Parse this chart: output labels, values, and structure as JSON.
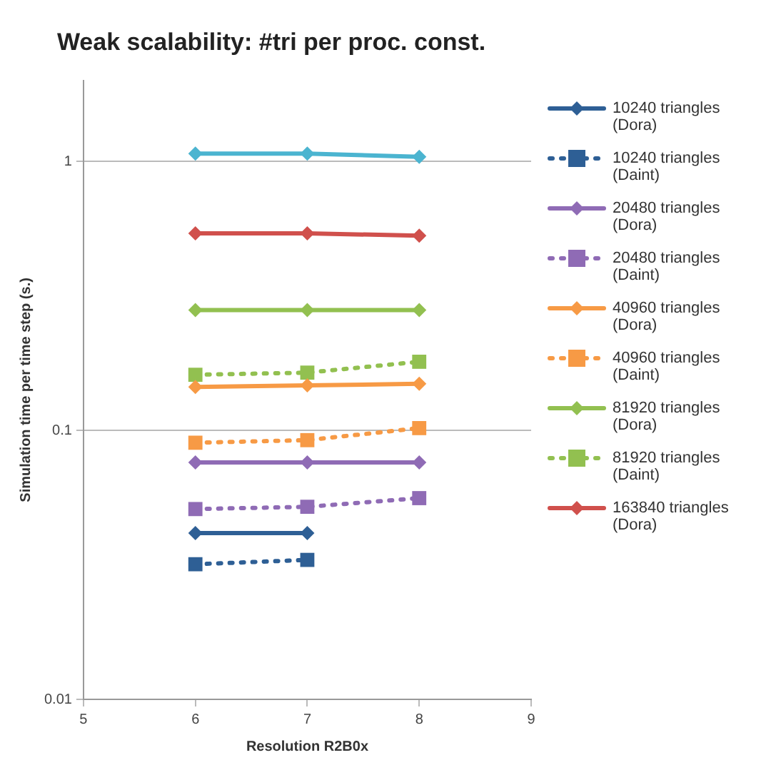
{
  "chart_data": {
    "type": "line",
    "title": "Weak scalability: #tri per proc. const.",
    "xlabel": "Resolution R2B0x",
    "ylabel": "Simulation time per time step (s.)",
    "log": "y",
    "grid": "y",
    "legend": "right",
    "xlim": [
      5,
      9
    ],
    "xticks": [
      5,
      6,
      7,
      8,
      9
    ],
    "ylim": [
      0.01,
      2
    ],
    "yticks": [
      0.01,
      0.1,
      1
    ],
    "series": [
      {
        "name": "10240 triangles (Dora)",
        "color": "#2e5f95",
        "x": [
          6,
          7
        ],
        "values": [
          0.0415,
          0.0415
        ],
        "marker": "diamond",
        "line_style": "solid"
      },
      {
        "name": "10240 triangles (Daint)",
        "color": "#2e5f95",
        "x": [
          6,
          7
        ],
        "values": [
          0.0318,
          0.033
        ],
        "marker": "square",
        "line_style": "dotted"
      },
      {
        "name": "20480 triangles (Dora)",
        "color": "#8f6bb5",
        "x": [
          6,
          7,
          8
        ],
        "values": [
          0.076,
          0.076,
          0.076
        ],
        "marker": "diamond",
        "line_style": "solid"
      },
      {
        "name": "20480 triangles (Daint)",
        "color": "#8f6bb5",
        "x": [
          6,
          7,
          8
        ],
        "values": [
          0.051,
          0.052,
          0.056
        ],
        "marker": "square",
        "line_style": "dotted"
      },
      {
        "name": "40960 triangles (Dora)",
        "color": "#f79a45",
        "x": [
          6,
          7,
          8
        ],
        "values": [
          0.145,
          0.147,
          0.149
        ],
        "marker": "diamond",
        "line_style": "solid"
      },
      {
        "name": "40960 triangles (Daint)",
        "color": "#f79a45",
        "x": [
          6,
          7,
          8
        ],
        "values": [
          0.09,
          0.092,
          0.102
        ],
        "marker": "square",
        "line_style": "dotted"
      },
      {
        "name": "81920 triangles (Dora)",
        "color": "#92c050",
        "x": [
          6,
          7,
          8
        ],
        "values": [
          0.28,
          0.28,
          0.28
        ],
        "marker": "diamond",
        "line_style": "solid"
      },
      {
        "name": "81920 triangles (Daint)",
        "color": "#92c050",
        "x": [
          6,
          7,
          8
        ],
        "values": [
          0.161,
          0.164,
          0.18
        ],
        "marker": "square",
        "line_style": "dotted"
      },
      {
        "name": "163840 triangles (Dora)",
        "color": "#d0504c",
        "x": [
          6,
          7,
          8
        ],
        "values": [
          0.54,
          0.54,
          0.53
        ],
        "marker": "diamond",
        "line_style": "solid"
      },
      {
        "color": "#4bb4d0",
        "x": [
          6,
          7,
          8
        ],
        "values": [
          1.07,
          1.07,
          1.04
        ],
        "marker": "diamond",
        "line_style": "solid"
      }
    ]
  }
}
